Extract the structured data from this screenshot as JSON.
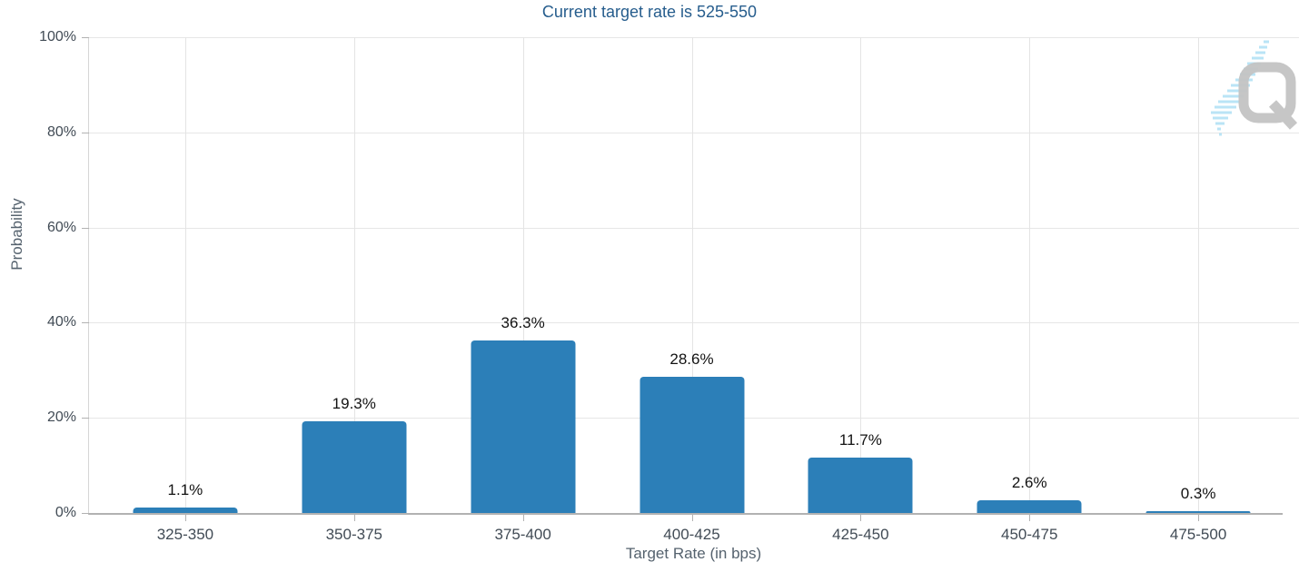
{
  "chart_data": {
    "type": "bar",
    "title": "Current target rate is 525-550",
    "categories": [
      "325-350",
      "350-375",
      "375-400",
      "400-425",
      "425-450",
      "450-475",
      "475-500"
    ],
    "values": [
      1.1,
      19.3,
      36.3,
      28.6,
      11.7,
      2.6,
      0.3
    ],
    "value_labels": [
      "1.1%",
      "19.3%",
      "36.3%",
      "28.6%",
      "11.7%",
      "2.6%",
      "0.3%"
    ],
    "xlabel": "Target Rate (in bps)",
    "ylabel": "Probability",
    "ylim": [
      0,
      100
    ],
    "ytick_values": [
      0,
      20,
      40,
      60,
      80,
      100
    ],
    "ytick_labels": [
      "0%",
      "20%",
      "40%",
      "60%",
      "80%",
      "100%"
    ],
    "grid": true,
    "legend_position": "none"
  },
  "colors": {
    "bar": "#2c7fb8",
    "title": "#265d8d",
    "tick_label": "#414b55",
    "axis_title": "#55626e",
    "value_label": "#121212",
    "gridline": "#e6e6e6",
    "axis_line": "#b2b2b2",
    "watermark_gray": "#c4c4c4",
    "watermark_blue": "#aee0f5"
  },
  "watermark": {
    "letter": "Q"
  }
}
